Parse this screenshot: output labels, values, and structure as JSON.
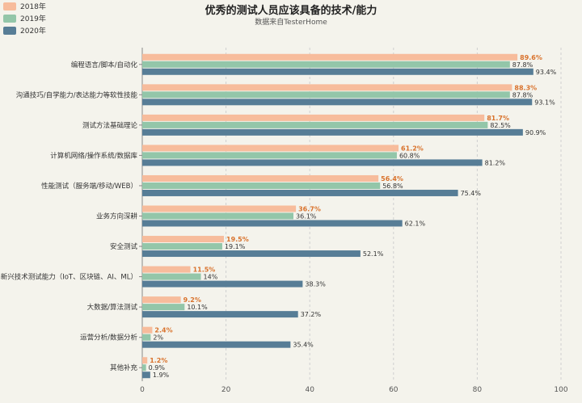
{
  "chart_data": {
    "type": "bar",
    "orientation": "horizontal",
    "title": "优秀的测试人员应该具备的技术/能力",
    "subtitle": "数据来自TesterHome",
    "categories": [
      "编程语言/脚本/自动化",
      "沟通技巧/自学能力/表达能力等软性技能",
      "测试方法基础理论",
      "计算机网络/操作系统/数据库",
      "性能测试（服务端/移动/WEB）",
      "业务方向深耕",
      "安全测试",
      "新兴技术测试能力（IoT、区块链、AI、ML）",
      "大数据/算法测试",
      "运营分析/数据分析",
      "其他补充"
    ],
    "series": [
      {
        "name": "2018年",
        "color": "#f7bc9c",
        "label_color": "#d9722c",
        "values": [
          89.6,
          88.3,
          81.7,
          61.2,
          56.4,
          36.7,
          19.5,
          11.5,
          9.2,
          2.4,
          1.2
        ]
      },
      {
        "name": "2019年",
        "color": "#93c6a9",
        "label_color": "#333333",
        "values": [
          87.8,
          87.8,
          82.5,
          60.8,
          56.8,
          36.1,
          19.1,
          14,
          10.1,
          2,
          0.9
        ]
      },
      {
        "name": "2020年",
        "color": "#577d96",
        "label_color": "#333333",
        "values": [
          93.4,
          93.1,
          90.9,
          81.2,
          75.4,
          62.1,
          52.1,
          38.3,
          37.2,
          35.4,
          1.9
        ]
      }
    ],
    "xlim": [
      0,
      100
    ],
    "xticks": [
      0,
      20,
      40,
      60,
      80,
      100
    ],
    "value_suffix": "%",
    "grid": true,
    "legend_position": "top-left"
  }
}
